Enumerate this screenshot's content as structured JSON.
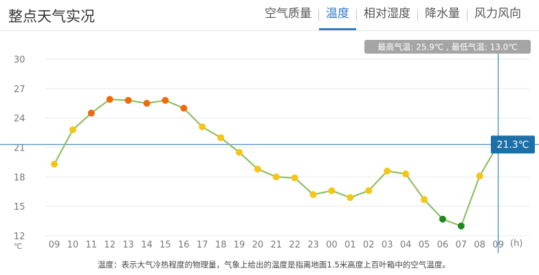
{
  "title": "整点天气实况",
  "tabs": [
    {
      "label": "空气质量",
      "active": false
    },
    {
      "label": "温度",
      "active": true
    },
    {
      "label": "相对湿度",
      "active": false
    },
    {
      "label": "降水量",
      "active": false
    },
    {
      "label": "风力风向",
      "active": false
    }
  ],
  "summary_text": "最高气温: 25.9℃ , 最低气温: 13.0℃",
  "crosshair_label": "21.3℃",
  "note": "温度：表示大气冷热程度的物理量，气象上给出的温度是指离地面1.5米高度上百叶箱中的空气温度。",
  "colors": {
    "line": "#8dc063",
    "hot": "#f06a0c",
    "mild": "#f5c518",
    "cold": "#1e8a1e",
    "crosshair": "#4a8cc4",
    "label_bg": "#1d6fa8"
  },
  "chart_data": {
    "type": "line",
    "categories": [
      "09",
      "10",
      "11",
      "12",
      "13",
      "14",
      "15",
      "16",
      "17",
      "18",
      "19",
      "20",
      "21",
      "22",
      "23",
      "00",
      "01",
      "02",
      "03",
      "04",
      "05",
      "06",
      "07",
      "08",
      "09"
    ],
    "values": [
      19.3,
      22.8,
      24.5,
      25.9,
      25.8,
      25.5,
      25.8,
      25.0,
      23.1,
      22.0,
      20.5,
      18.8,
      18.0,
      17.9,
      16.2,
      16.6,
      15.9,
      16.6,
      18.6,
      18.3,
      15.7,
      13.7,
      13.0,
      18.1,
      21.3
    ],
    "yticks": [
      12,
      15,
      18,
      21,
      24,
      27,
      30
    ],
    "ylim": [
      12,
      30
    ],
    "y_unit": "℃",
    "x_unit": "(h)",
    "grid": true,
    "crosshair_value": 21.3
  }
}
